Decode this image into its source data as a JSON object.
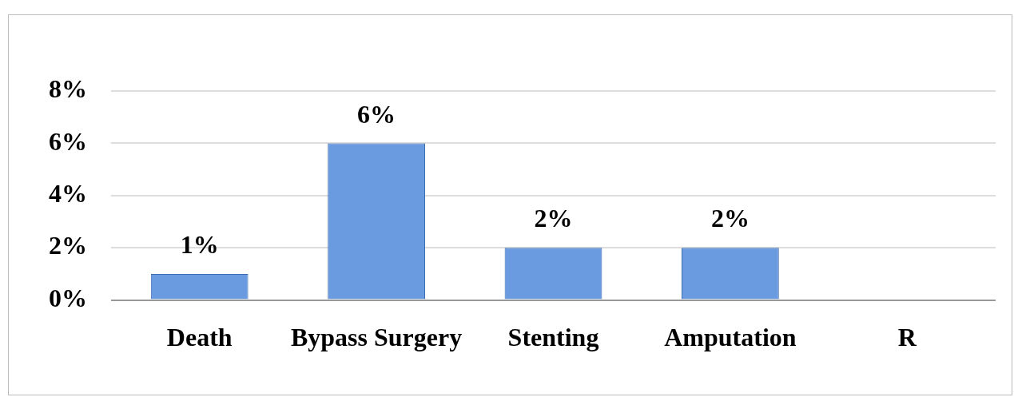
{
  "chart_data": {
    "type": "bar",
    "categories": [
      "Death",
      "Bypass Surgery",
      "Stenting",
      "Amputation",
      "R"
    ],
    "values": [
      1,
      6,
      2,
      2,
      null
    ],
    "value_labels": [
      "1%",
      "6%",
      "2%",
      "2%",
      null
    ],
    "color": "#6a9be0",
    "ylim": [
      0,
      8
    ],
    "yticks": [
      {
        "value": 0,
        "label": "0%"
      },
      {
        "value": 2,
        "label": "2%"
      },
      {
        "value": 4,
        "label": "4%"
      },
      {
        "value": 6,
        "label": "6%"
      },
      {
        "value": 8,
        "label": "8%"
      }
    ],
    "grid": "y",
    "legend": false
  }
}
